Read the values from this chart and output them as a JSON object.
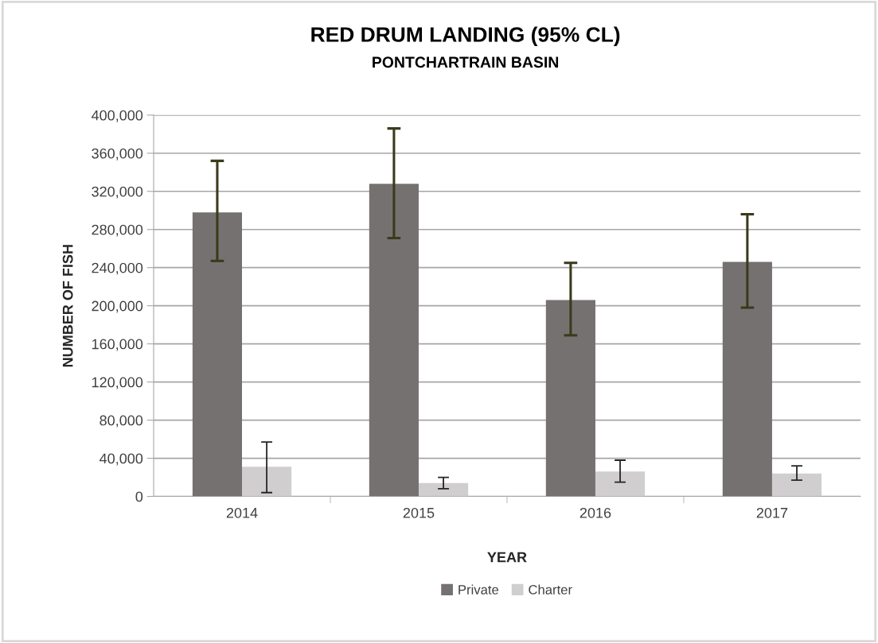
{
  "chart_data": {
    "type": "bar",
    "title": "RED DRUM LANDING (95% CL)",
    "subtitle": "PONTCHARTRAIN BASIN",
    "xlabel": "YEAR",
    "ylabel": "NUMBER OF FISH",
    "categories": [
      "2014",
      "2015",
      "2016",
      "2017"
    ],
    "series": [
      {
        "name": "Private",
        "color": "#767171",
        "values": [
          298000,
          328000,
          206000,
          246000
        ],
        "errors": [
          [
            247000,
            352000
          ],
          [
            271000,
            386000
          ],
          [
            169000,
            245000
          ],
          [
            198000,
            296000
          ]
        ]
      },
      {
        "name": "Charter",
        "color": "#d0cece",
        "values": [
          31000,
          14000,
          26000,
          24000
        ],
        "errors": [
          [
            4000,
            57000
          ],
          [
            8000,
            20000
          ],
          [
            15000,
            38000
          ],
          [
            17000,
            32000
          ]
        ]
      }
    ],
    "ylim": [
      0,
      400000
    ],
    "yticks": [
      {
        "value": 0,
        "label": "0"
      },
      {
        "value": 40000,
        "label": "40,000"
      },
      {
        "value": 80000,
        "label": "80,000"
      },
      {
        "value": 120000,
        "label": "120,000"
      },
      {
        "value": 160000,
        "label": "160,000"
      },
      {
        "value": 200000,
        "label": "200,000"
      },
      {
        "value": 240000,
        "label": "240,000"
      },
      {
        "value": 280000,
        "label": "280,000"
      },
      {
        "value": 320000,
        "label": "320,000"
      },
      {
        "value": 360000,
        "label": "360,000"
      },
      {
        "value": 400000,
        "label": "400,000"
      }
    ],
    "grid": "y",
    "legend": "bottom"
  }
}
